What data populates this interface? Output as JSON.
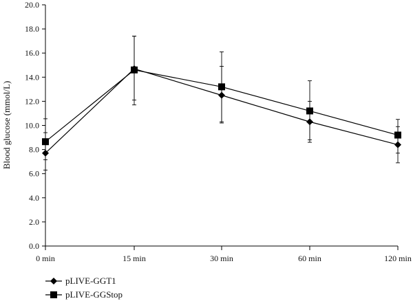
{
  "chart_data": {
    "type": "line",
    "title": "",
    "xlabel": "",
    "ylabel": "Blood glucose (mmol/L)",
    "categories": [
      "0 min",
      "15 min",
      "30 min",
      "60 min",
      "120 min"
    ],
    "ylim": [
      0,
      20
    ],
    "yticks": [
      "0.0",
      "2.0",
      "4.0",
      "6.0",
      "8.0",
      "10.0",
      "12.0",
      "14.0",
      "16.0",
      "18.0",
      "20.0"
    ],
    "grid": false,
    "legend_position": "bottom-left",
    "series": [
      {
        "name": "pLIVE-GGT1",
        "marker": "diamond",
        "color": "#000000",
        "values": [
          7.7,
          14.7,
          12.5,
          10.3,
          8.4
        ],
        "err_low": [
          1.4,
          2.6,
          2.3,
          1.5,
          1.5
        ],
        "err_high": [
          1.7,
          2.7,
          2.4,
          1.7,
          1.5
        ]
      },
      {
        "name": "pLIVE-GGStop",
        "marker": "square",
        "color": "#000000",
        "values": [
          8.65,
          14.6,
          13.2,
          11.2,
          9.2
        ],
        "err_low": [
          1.5,
          2.9,
          2.9,
          2.6,
          1.5
        ],
        "err_high": [
          1.9,
          2.8,
          2.9,
          2.5,
          1.3
        ]
      }
    ]
  }
}
